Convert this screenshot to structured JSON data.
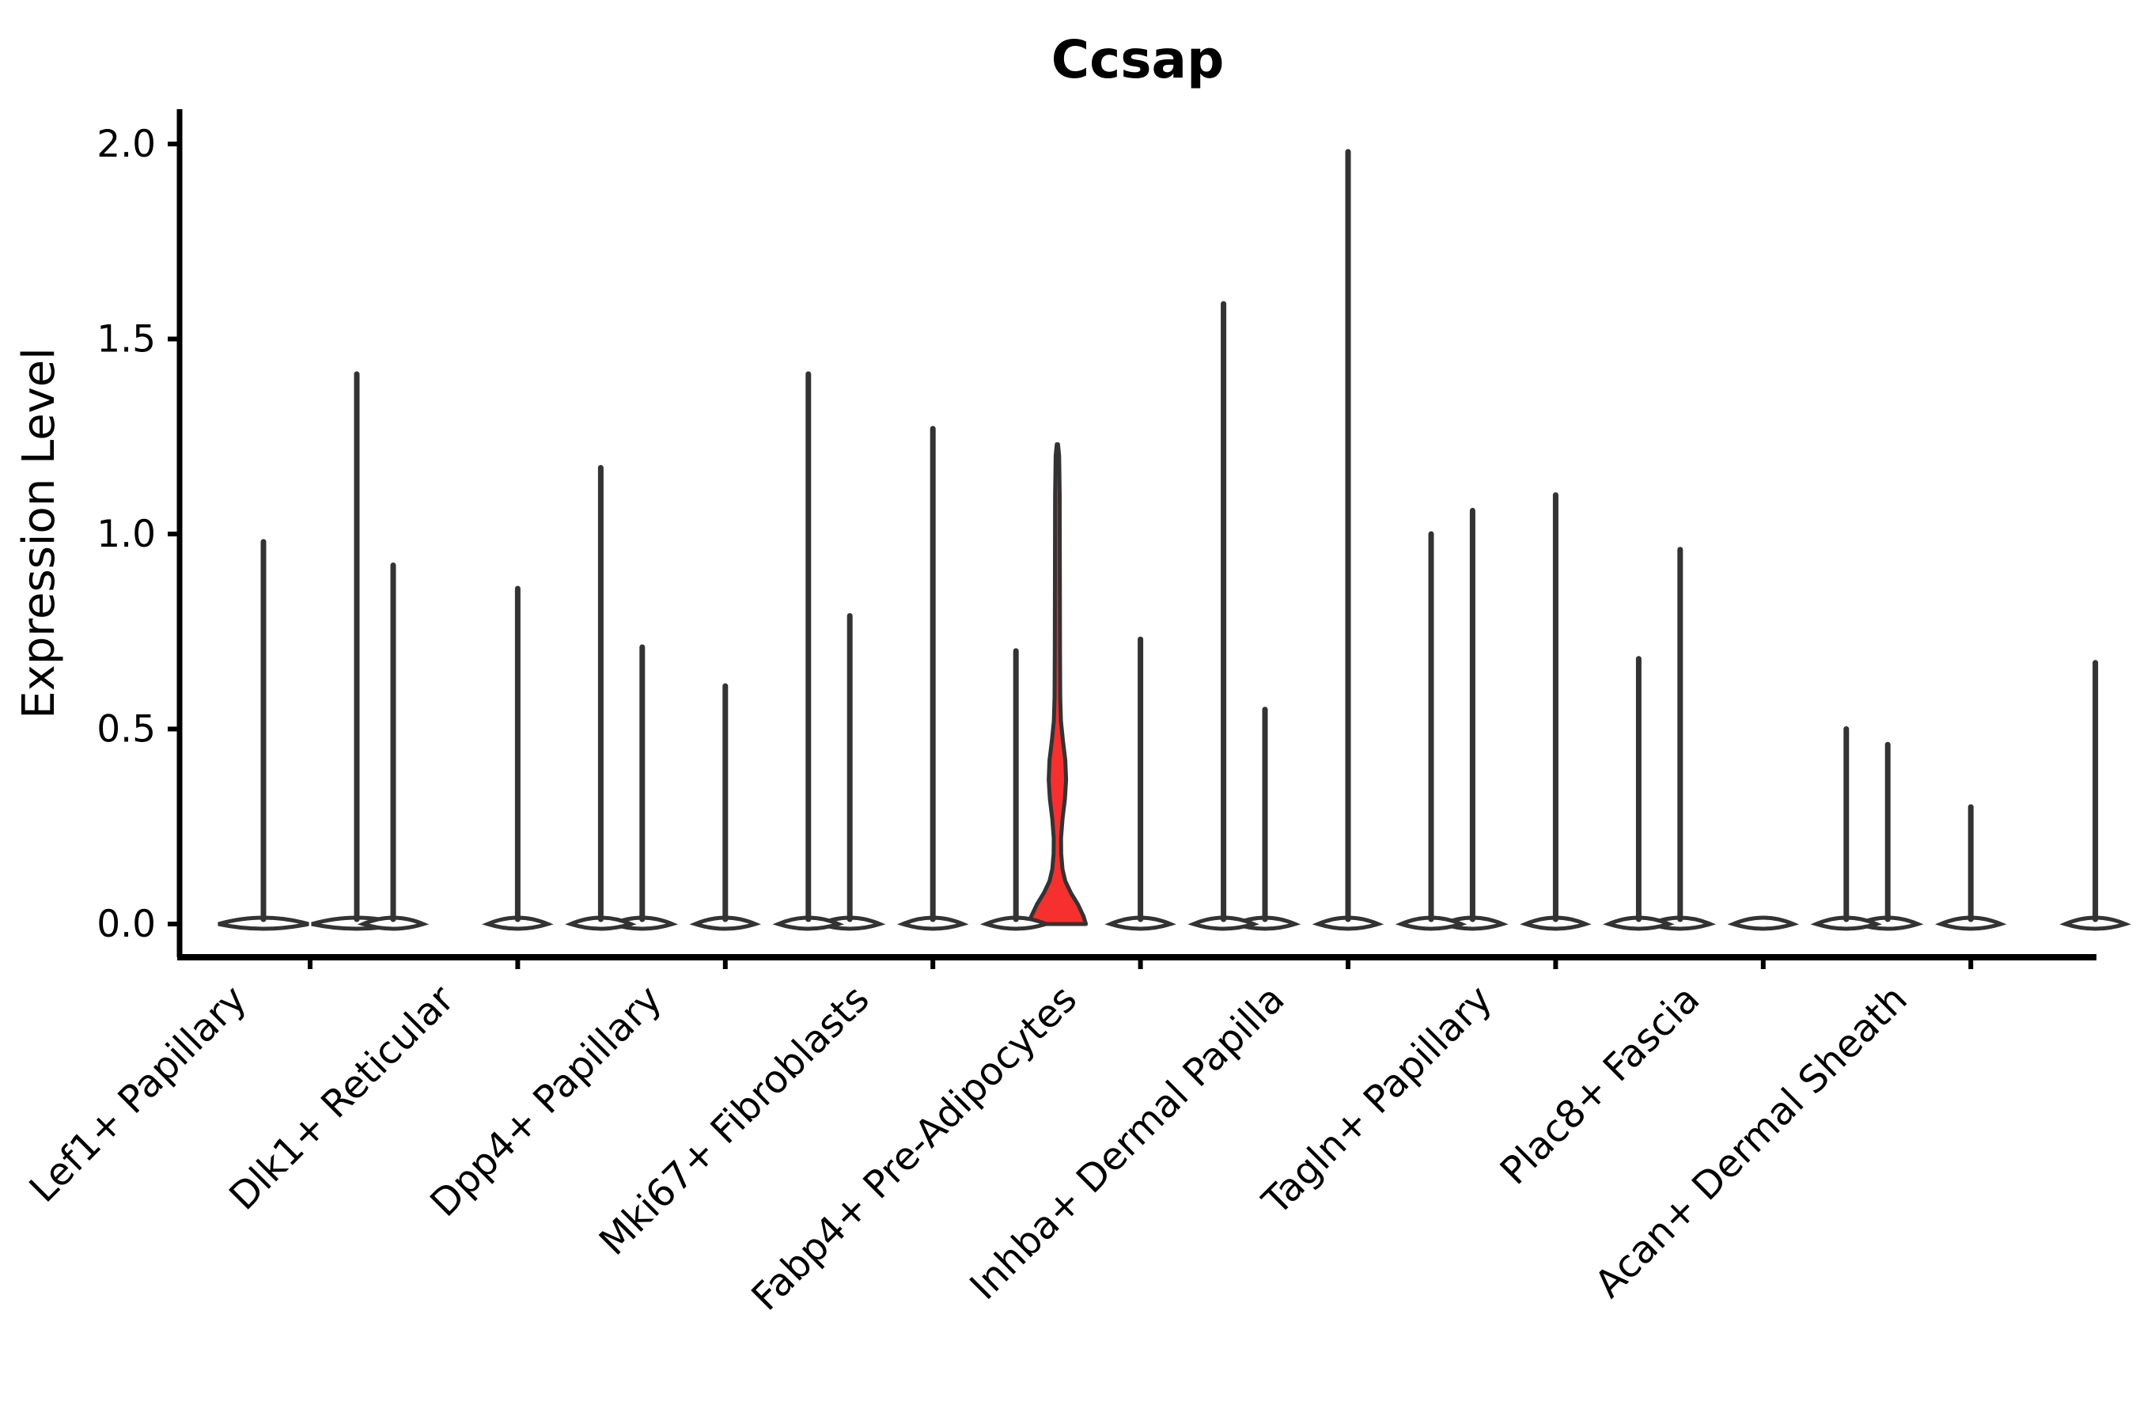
{
  "title": "Ccsap",
  "style": {
    "background": "#ffffff",
    "spine_color": "#000000",
    "violin_stroke": "#333333",
    "violin_fill": "#ffffff",
    "highlight_fill": "#f5302e",
    "text_color": "#000000"
  },
  "chart_data": {
    "type": "violin",
    "title": "Ccsap",
    "xlabel": "",
    "ylabel": "Expression Level",
    "ylim": [
      -0.09,
      2.08
    ],
    "yticks": [
      {
        "value": 0.0,
        "label": "0.0"
      },
      {
        "value": 0.5,
        "label": "0.5"
      },
      {
        "value": 1.0,
        "label": "1.0"
      },
      {
        "value": 1.5,
        "label": "1.5"
      },
      {
        "value": 2.0,
        "label": "2.0"
      }
    ],
    "grid": "off",
    "legend": "none",
    "categories": [
      "Lef1+ Papillary",
      "Dlk1+ Reticular",
      "Dpp4+ Papillary",
      "Mki67+ Fibroblasts",
      "Fabp4+ Pre-Adipocytes",
      "Inhba+ Dermal Papilla",
      "Tagln+ Papillary",
      "Plac8+ Fascia",
      "Acan+ Dermal Sheath"
    ],
    "groups": [
      {
        "category": "Lef1+ Papillary",
        "violins": [
          {
            "max": 0.98
          },
          {
            "max": 1.41
          }
        ]
      },
      {
        "category": "Dlk1+ Reticular",
        "violins": [
          {
            "max": 0.92
          },
          {
            "max": 0.86
          },
          {
            "max": 0.71
          }
        ]
      },
      {
        "category": "Dpp4+ Papillary",
        "violins": [
          {
            "max": 1.17
          },
          {
            "max": 0.61
          },
          {
            "max": 0.79
          }
        ]
      },
      {
        "category": "Mki67+ Fibroblasts",
        "violins": [
          {
            "max": 1.41
          },
          {
            "max": 1.27
          },
          {
            "max": 1.23,
            "highlight": true
          }
        ]
      },
      {
        "category": "Fabp4+ Pre-Adipocytes",
        "violins": [
          {
            "max": 0.7
          },
          {
            "max": 0.73
          },
          {
            "max": 0.55
          }
        ]
      },
      {
        "category": "Inhba+ Dermal Papilla",
        "violins": [
          {
            "max": 1.59
          },
          {
            "max": 1.98
          },
          {
            "max": 1.06
          }
        ]
      },
      {
        "category": "Tagln+ Papillary",
        "violins": [
          {
            "max": 1.0
          },
          {
            "max": 1.1
          },
          {
            "max": 0.96
          }
        ]
      },
      {
        "category": "Plac8+ Fascia",
        "violins": [
          {
            "max": 0.68
          },
          {
            "max": 0.0
          },
          {
            "max": 0.46
          }
        ]
      },
      {
        "category": "Acan+ Dermal Sheath",
        "violins": [
          {
            "max": 0.5
          },
          {
            "max": 0.3
          },
          {
            "max": 0.67
          }
        ]
      }
    ],
    "highlight_profile": [
      [
        0.0,
        36.0
      ],
      [
        0.02,
        33.0
      ],
      [
        0.05,
        26.0
      ],
      [
        0.08,
        17.0
      ],
      [
        0.11,
        10.0
      ],
      [
        0.14,
        6.5
      ],
      [
        0.18,
        4.8
      ],
      [
        0.22,
        4.6
      ],
      [
        0.27,
        6.5
      ],
      [
        0.32,
        9.5
      ],
      [
        0.37,
        11.0
      ],
      [
        0.42,
        10.0
      ],
      [
        0.47,
        7.0
      ],
      [
        0.52,
        4.5
      ],
      [
        0.58,
        3.6
      ],
      [
        0.7,
        3.3
      ],
      [
        0.9,
        3.1
      ],
      [
        1.1,
        2.9
      ],
      [
        1.2,
        2.2
      ],
      [
        1.23,
        0.8
      ]
    ]
  }
}
